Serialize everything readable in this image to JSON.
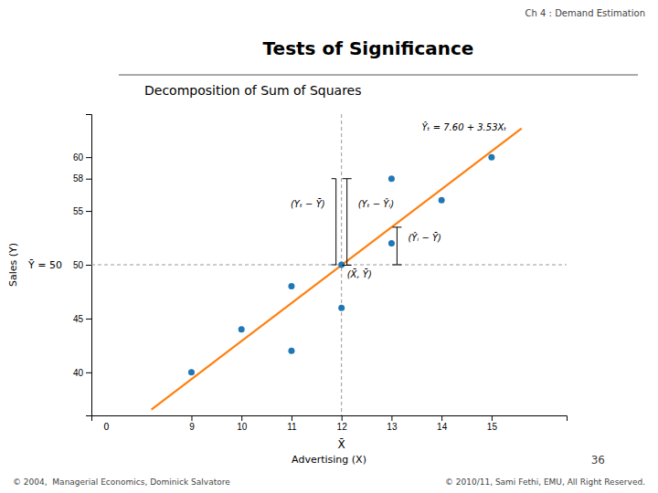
{
  "chart_data": {
    "type": "scatter",
    "header": "Ch 4 : Demand Estimation",
    "title": "Tests of Significance",
    "subtitle": "Decomposition of Sum of Squares",
    "xlabel": "Advertising (X)",
    "ylabel": "Sales (Y)",
    "series": [
      {
        "type": "scatter",
        "x": [
          9,
          10,
          11,
          11,
          12,
          12,
          13,
          13,
          14,
          15
        ],
        "values": [
          40,
          44,
          42,
          48,
          46,
          50,
          52,
          58,
          56,
          60
        ]
      },
      {
        "type": "line",
        "x": [
          8.2,
          15.6
        ],
        "values": [
          36.546,
          62.668
        ]
      }
    ],
    "xlim": [
      7.0,
      16.5
    ],
    "ylim": [
      36,
      64
    ],
    "xticks": [
      9,
      10,
      11,
      12,
      13,
      14,
      15
    ],
    "yticks": [
      40,
      45,
      50,
      55,
      58,
      60
    ],
    "xbar": {
      "value": 12,
      "label": "X̄"
    },
    "ybar": {
      "value": 50,
      "label": "Ȳ = 50"
    },
    "annotations": [
      {
        "text": "0",
        "x": 7.3,
        "y": 36
      },
      {
        "text": "Ŷₜ = 7.60 + 3.53Xₜ",
        "x": 15.3,
        "y": 62.5
      },
      {
        "text": "(Yₜ − Ȳ)",
        "x": 12,
        "y": [
          50,
          58
        ]
      },
      {
        "text": "(Yₜ − Ŷᵢ)",
        "x": 12,
        "y": [
          49.96,
          58
        ]
      },
      {
        "text": "(Ŷᵢ − Ȳ)",
        "x": 13,
        "y": [
          50,
          53.49
        ]
      },
      {
        "text": "(X̄, Ȳ)",
        "x": 12,
        "y": 50
      }
    ],
    "grid": false,
    "footer_left": "© 2004,  Managerial Economics, Dominick Salvatore",
    "footer_right": "© 2010/11, Sami Fethi, EMU, All Right Reserved.",
    "page_number": "36"
  }
}
